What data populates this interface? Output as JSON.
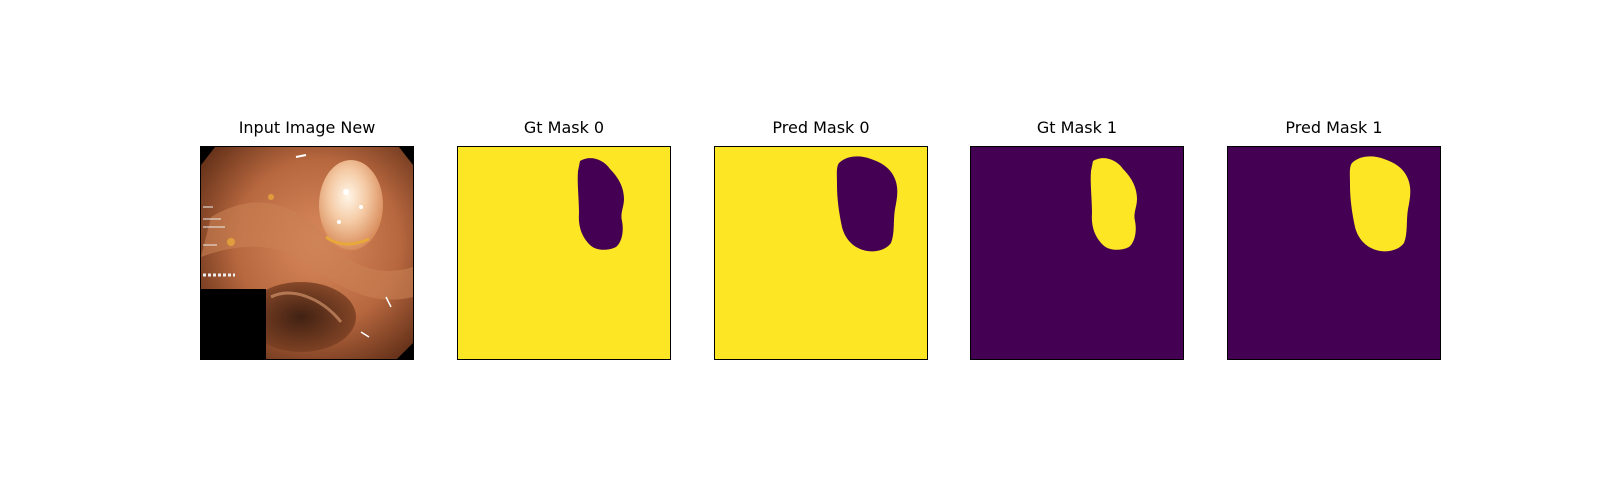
{
  "colors": {
    "mask_foreground": "#fde725",
    "mask_background": "#440154"
  },
  "panels": [
    {
      "title": "Input Image New"
    },
    {
      "title": "Gt Mask 0"
    },
    {
      "title": "Pred Mask 0"
    },
    {
      "title": "Gt Mask 1"
    },
    {
      "title": "Pred Mask 1"
    }
  ]
}
